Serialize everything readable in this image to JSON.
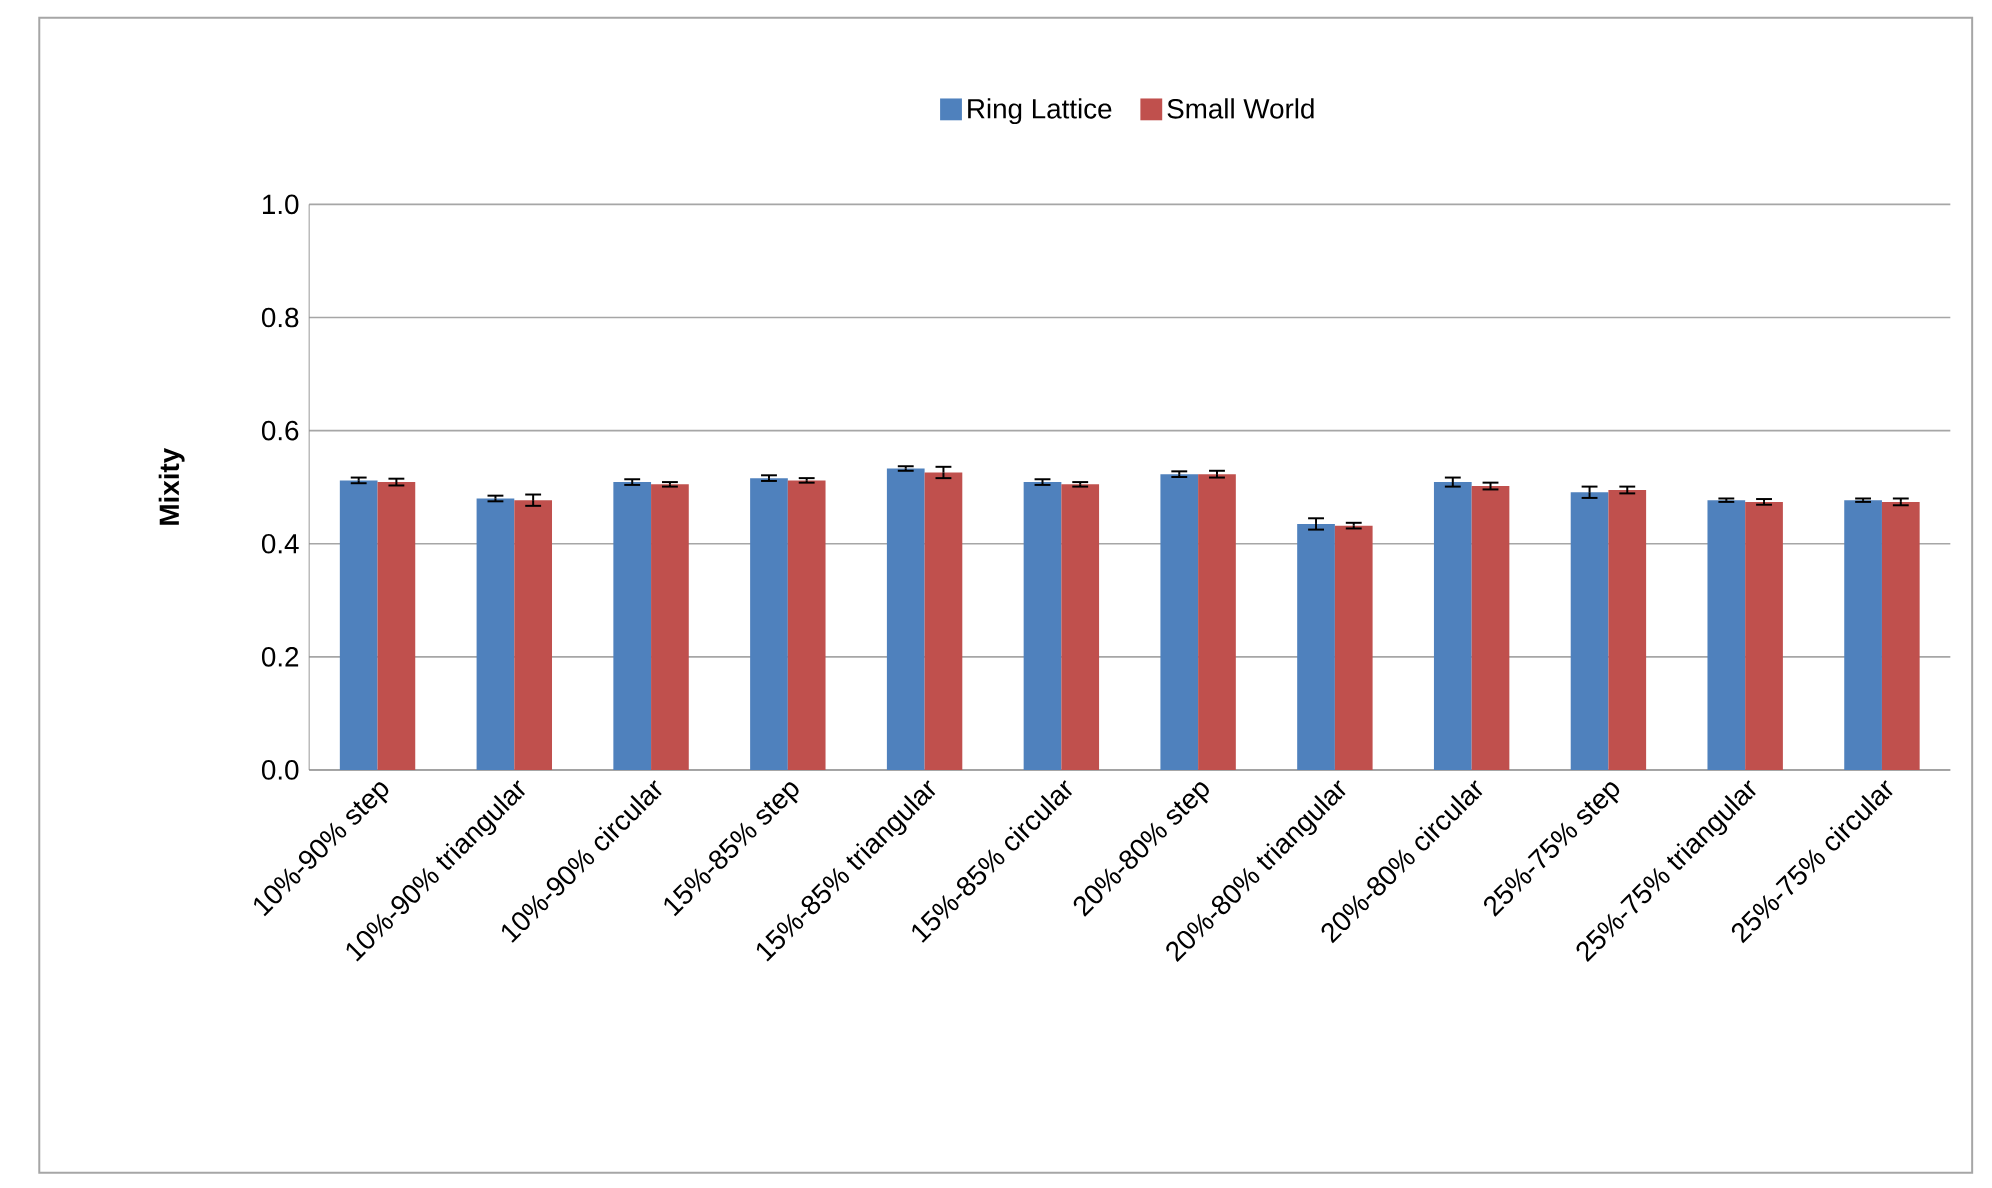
{
  "chart_data": {
    "type": "bar",
    "ylabel": "Mixity",
    "categories": [
      "10%-90% step",
      "10%-90% triangular",
      "10%-90% circular",
      "15%-85% step",
      "15%-85% triangular",
      "15%-85% circular",
      "20%-80% step",
      "20%-80% triangular",
      "20%-80% circular",
      "25%-75% step",
      "25%-75% triangular",
      "25%-75% circular"
    ],
    "series": [
      {
        "name": "Ring Lattice",
        "color": "#4f81bd",
        "values": [
          0.512,
          0.48,
          0.509,
          0.516,
          0.533,
          0.509,
          0.523,
          0.435,
          0.509,
          0.491,
          0.477,
          0.477
        ],
        "errors": [
          0.005,
          0.005,
          0.005,
          0.005,
          0.004,
          0.005,
          0.005,
          0.01,
          0.008,
          0.01,
          0.003,
          0.003
        ]
      },
      {
        "name": "Small World",
        "color": "#c0504d",
        "values": [
          0.509,
          0.477,
          0.505,
          0.512,
          0.526,
          0.505,
          0.523,
          0.432,
          0.502,
          0.495,
          0.474,
          0.474
        ],
        "errors": [
          0.006,
          0.01,
          0.004,
          0.004,
          0.01,
          0.004,
          0.006,
          0.005,
          0.006,
          0.006,
          0.005,
          0.006
        ]
      }
    ],
    "ylim": [
      0,
      1
    ],
    "yticks": [
      {
        "value": 0,
        "label": "0.0"
      },
      {
        "value": 0.2,
        "label": "0.2"
      },
      {
        "value": 0.4,
        "label": "0.4"
      },
      {
        "value": 0.6,
        "label": "0.6"
      },
      {
        "value": 0.8,
        "label": "0.8"
      },
      {
        "value": 1,
        "label": "1.0"
      }
    ],
    "grid": "y",
    "legend": "top"
  }
}
